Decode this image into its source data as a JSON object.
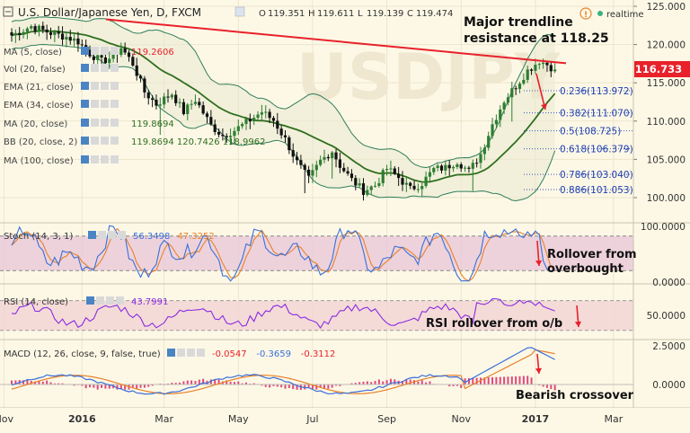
{
  "header": {
    "symbol": "U.S. Dollar/Japanese Yen, D, FXCM",
    "ohlc_labels": [
      "O",
      "H",
      "L",
      "C"
    ],
    "ohlc_values": [
      "119.351",
      "119.611",
      "119.139",
      "119.474"
    ],
    "logo_text": "realtime"
  },
  "indicators": [
    {
      "label": "MA (5, close)",
      "value": "119.2606",
      "value_color": "#e8212b"
    },
    {
      "label": "Vol (20, false)",
      "value": "",
      "value_color": "#777777"
    },
    {
      "label": "EMA (21, close)",
      "value": "",
      "value_color": "#777777"
    },
    {
      "label": "EMA (34, close)",
      "value": "",
      "value_color": "#777777"
    },
    {
      "label": "MA (20, close)",
      "value": "119.8694",
      "value_color": "#2f6f1f"
    },
    {
      "label": "BB (20, close, 2)",
      "value": "119.8694  120.7426  118.9962",
      "value_color": "#2f6f1f"
    },
    {
      "label": "MA (100, close)",
      "value": "",
      "value_color": "#777777"
    }
  ],
  "annotations": {
    "trendline": "Major trendline\nresistance at 118.25",
    "stoch": "Rollover from\noverbought",
    "rsi": "RSI rollover from o/b",
    "macd": "Bearish crossover"
  },
  "last_price": "116.733",
  "sub_panels": {
    "stoch": {
      "label": "Stoch (14, 3, 1)",
      "values": [
        "56.3498",
        "47.3252"
      ],
      "colors": [
        "#3a6fd8",
        "#e8822a"
      ]
    },
    "rsi": {
      "label": "RSI (14, close)",
      "values": [
        "43.7991"
      ],
      "colors": [
        "#8a2be2"
      ]
    },
    "macd": {
      "label": "MACD (12, 26, close, 9, false, true)",
      "values": [
        "-0.0547",
        "-0.3659",
        "-0.3112"
      ],
      "colors": [
        "#e8212b",
        "#3a6fd8",
        "#e8212b"
      ]
    }
  },
  "colors": {
    "up": "#2e7d32",
    "down": "#111111",
    "trend": "#e8212b",
    "bb": "#2f7d5c",
    "ma": "#2f6f1f",
    "stoch_k": "#3a6fd8",
    "stoch_d": "#e8822a",
    "rsi": "#8a2be2",
    "band": "#e7c6d8",
    "rsi_band": "#f2d6d3"
  },
  "chart_data": {
    "type": "candlestick",
    "title": "U.S. Dollar/Japanese Yen, D, FXCM",
    "x_ticks": [
      "Nov",
      "2016",
      "Mar",
      "May",
      "Jul",
      "Sep",
      "Nov",
      "2017",
      "Mar"
    ],
    "y_ticks": [
      "125.000",
      "120.000",
      "115.000",
      "110.000",
      "105.000",
      "100.000"
    ],
    "ylim": [
      98,
      125
    ],
    "fibonacci": [
      {
        "label": "0.236(113.972)",
        "value": 113.972
      },
      {
        "label": "0.382(111.070)",
        "value": 111.07
      },
      {
        "label": "0.5(108.725)",
        "value": 108.725
      },
      {
        "label": "0.618(106.379)",
        "value": 106.379
      },
      {
        "label": "0.786(103.040)",
        "value": 103.04
      },
      {
        "label": "0.886(101.053)",
        "value": 101.053
      }
    ],
    "price_path": [
      {
        "x": 0,
        "y": 121.2
      },
      {
        "x": 5,
        "y": 122.4
      },
      {
        "x": 10,
        "y": 121.5
      },
      {
        "x": 14,
        "y": 121.0
      },
      {
        "x": 17,
        "y": 120.4
      },
      {
        "x": 20,
        "y": 118.8
      },
      {
        "x": 23,
        "y": 117.8
      },
      {
        "x": 26,
        "y": 118.4
      },
      {
        "x": 28,
        "y": 119.6
      },
      {
        "x": 31,
        "y": 117.5
      },
      {
        "x": 34,
        "y": 113.8
      },
      {
        "x": 37,
        "y": 112.2
      },
      {
        "x": 41,
        "y": 113.6
      },
      {
        "x": 44,
        "y": 111.2
      },
      {
        "x": 47,
        "y": 112.8
      },
      {
        "x": 51,
        "y": 109.4
      },
      {
        "x": 54,
        "y": 108.1
      },
      {
        "x": 57,
        "y": 108.8
      },
      {
        "x": 60,
        "y": 109.8
      },
      {
        "x": 64,
        "y": 111.2
      },
      {
        "x": 67,
        "y": 110.1
      },
      {
        "x": 70,
        "y": 107.6
      },
      {
        "x": 73,
        "y": 104.6
      },
      {
        "x": 76,
        "y": 102.4
      },
      {
        "x": 79,
        "y": 104.8
      },
      {
        "x": 82,
        "y": 106.1
      },
      {
        "x": 84,
        "y": 104.2
      },
      {
        "x": 87,
        "y": 102.3
      },
      {
        "x": 90,
        "y": 100.9
      },
      {
        "x": 93,
        "y": 101.6
      },
      {
        "x": 96,
        "y": 103.8
      },
      {
        "x": 99,
        "y": 102.6
      },
      {
        "x": 102,
        "y": 101.1
      },
      {
        "x": 105,
        "y": 101.9
      },
      {
        "x": 108,
        "y": 103.7
      },
      {
        "x": 111,
        "y": 103.9
      },
      {
        "x": 114,
        "y": 104.8
      },
      {
        "x": 117,
        "y": 103.4
      },
      {
        "x": 120,
        "y": 105.7
      },
      {
        "x": 123,
        "y": 109.6
      },
      {
        "x": 126,
        "y": 112.7
      },
      {
        "x": 129,
        "y": 114.6
      },
      {
        "x": 132,
        "y": 116.6
      },
      {
        "x": 135,
        "y": 117.9
      },
      {
        "x": 137,
        "y": 117.4
      },
      {
        "x": 139,
        "y": 116.7
      }
    ],
    "series": [
      {
        "type": "stochastic",
        "label": "Stoch (14, 3, 1)",
        "ylim": [
          0,
          100
        ],
        "y_ticks": [
          "100.0000",
          "0.0000"
        ]
      },
      {
        "type": "rsi",
        "label": "RSI (14, close)",
        "ylim": [
          20,
          90
        ],
        "y_ticks": [
          "50.0000"
        ]
      },
      {
        "type": "macd",
        "label": "MACD (12, 26, close, 9, false, true)",
        "ylim": [
          -1.4,
          2.8
        ],
        "y_ticks": [
          "2.5000",
          "0.0000"
        ]
      }
    ],
    "trendline": {
      "from": {
        "x": 0,
        "y": 123.3
      },
      "to": {
        "x": 152,
        "y": 117.8
      }
    }
  }
}
